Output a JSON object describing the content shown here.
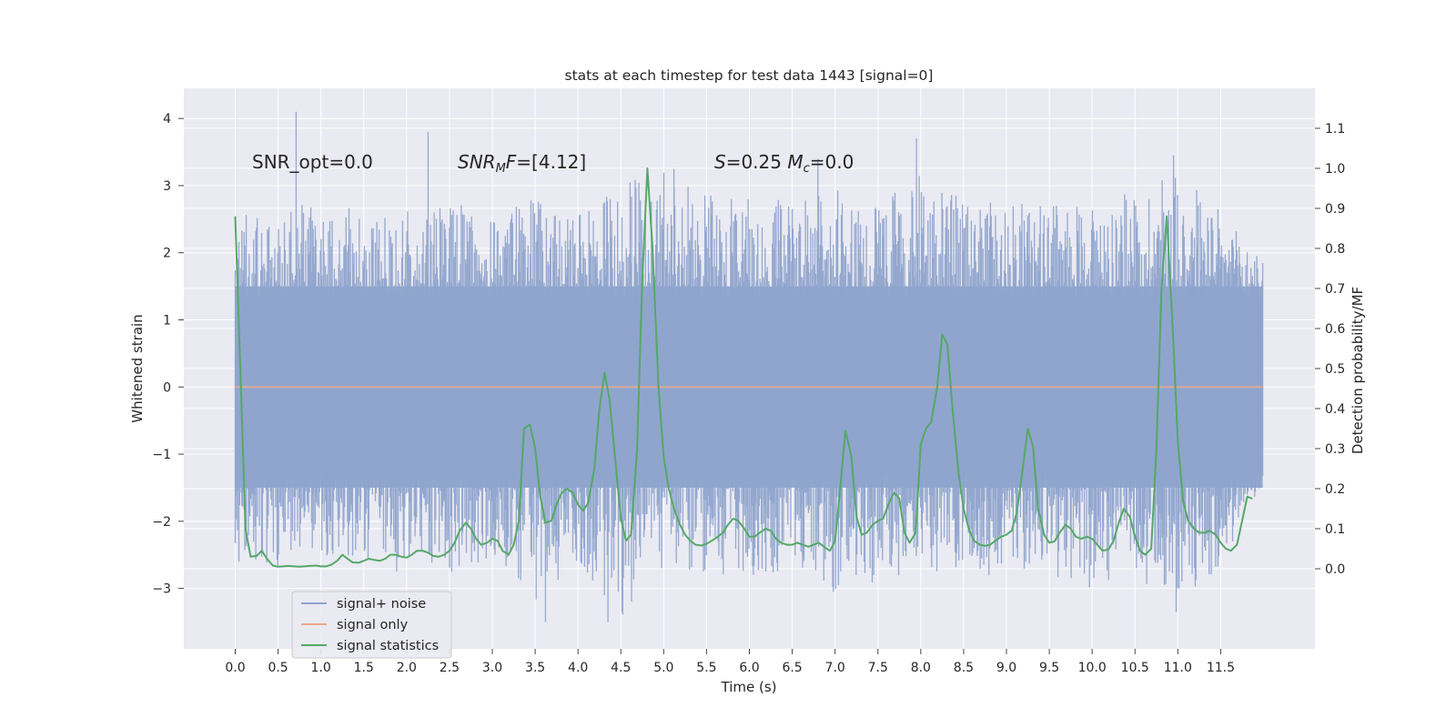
{
  "chart_data": {
    "type": "line",
    "title": "stats at each timestep for test data 1443 [signal=0]",
    "xlabel": "Time (s)",
    "ylabel_left": "Whitened strain",
    "ylabel_right": "Detection probability/MF",
    "xlim": [
      -0.6,
      12.6
    ],
    "ylim_left": [
      -3.9,
      4.45
    ],
    "ylim_right": [
      -0.2,
      1.2
    ],
    "x_ticks": [
      0.0,
      0.5,
      1.0,
      1.5,
      2.0,
      2.5,
      3.0,
      3.5,
      4.0,
      4.5,
      5.0,
      5.5,
      6.0,
      6.5,
      7.0,
      7.5,
      8.0,
      8.5,
      9.0,
      9.5,
      10.0,
      10.5,
      11.0,
      11.5
    ],
    "x_tick_labels": [
      "0.0",
      "0.5",
      "1.0",
      "1.5",
      "2.0",
      "2.5",
      "3.0",
      "3.5",
      "4.0",
      "4.5",
      "5.0",
      "5.5",
      "6.0",
      "6.5",
      "7.0",
      "7.5",
      "8.0",
      "8.5",
      "9.0",
      "9.5",
      "10.0",
      "10.5",
      "11.0",
      "11.5"
    ],
    "y_left_ticks": [
      -3,
      -2,
      -1,
      0,
      1,
      2,
      3,
      4
    ],
    "y_left_tick_labels": [
      "−3",
      "−2",
      "−1",
      "0",
      "1",
      "2",
      "3",
      "4"
    ],
    "y_right_ticks": [
      0.0,
      0.1,
      0.2,
      0.3,
      0.4,
      0.5,
      0.6,
      0.7,
      0.8,
      0.9,
      1.0,
      1.1
    ],
    "y_right_tick_labels": [
      "0.0",
      "0.1",
      "0.2",
      "0.3",
      "0.4",
      "0.5",
      "0.6",
      "0.7",
      "0.8",
      "0.9",
      "1.0",
      "1.1"
    ],
    "grid": true,
    "legend_position": "lower-left",
    "annotations": [
      {
        "label": "SNR_opt=0.0",
        "x": 0.2,
        "y": 3.35
      },
      {
        "label": "SNR_MF=[4.12]",
        "x": 2.6,
        "y": 3.35
      },
      {
        "label": "S=0.25   M_c=0.0",
        "x": 5.6,
        "y": 3.35
      }
    ],
    "series": [
      {
        "name": "signal+ noise",
        "axis": "left",
        "color": "#8fa4cc",
        "description_range": [
          0.0,
          11.99
        ],
        "envelope": {
          "x": [
            0.0,
            0.5,
            1.0,
            1.5,
            2.0,
            2.5,
            3.0,
            3.5,
            4.0,
            4.5,
            5.0,
            5.5,
            6.0,
            6.5,
            7.0,
            7.5,
            8.0,
            8.5,
            9.0,
            9.5,
            10.0,
            10.5,
            11.0,
            11.5,
            11.99
          ],
          "upper": [
            2.6,
            2.7,
            2.8,
            2.6,
            2.7,
            2.8,
            2.6,
            2.8,
            2.6,
            3.1,
            3.2,
            2.9,
            2.8,
            2.8,
            3.0,
            2.7,
            3.2,
            2.8,
            2.8,
            2.7,
            2.8,
            2.9,
            3.4,
            2.6,
            1.9
          ],
          "lower": [
            -2.6,
            -2.7,
            -2.5,
            -2.6,
            -2.8,
            -2.9,
            -2.5,
            -3.2,
            -2.8,
            -3.5,
            -2.7,
            -2.8,
            -2.9,
            -2.7,
            -3.1,
            -2.9,
            -2.8,
            -2.7,
            -2.9,
            -2.8,
            -3.0,
            -2.8,
            -3.3,
            -2.7,
            -1.4
          ]
        },
        "spikes": [
          {
            "x": 0.71,
            "y": 4.1
          },
          {
            "x": 2.25,
            "y": 3.8
          },
          {
            "x": 7.95,
            "y": 3.7
          },
          {
            "x": 10.95,
            "y": 3.45
          },
          {
            "x": 4.35,
            "y": -3.5
          },
          {
            "x": 3.62,
            "y": -3.5
          },
          {
            "x": 10.98,
            "y": -3.35
          },
          {
            "x": 6.8,
            "y": 3.4
          },
          {
            "x": 5.12,
            "y": 3.25
          }
        ]
      },
      {
        "name": "signal only",
        "axis": "left",
        "color": "#dd8452",
        "x": [
          0.0,
          11.99
        ],
        "y": [
          0.0,
          0.0
        ]
      },
      {
        "name": "signal statistics",
        "axis": "right",
        "color": "#55a868",
        "x": [
          0.0,
          0.06,
          0.12,
          0.18,
          0.25,
          0.31,
          0.37,
          0.44,
          0.5,
          0.56,
          0.62,
          0.69,
          0.75,
          0.81,
          0.87,
          0.94,
          1.0,
          1.06,
          1.12,
          1.19,
          1.25,
          1.31,
          1.37,
          1.44,
          1.5,
          1.56,
          1.62,
          1.69,
          1.75,
          1.81,
          1.87,
          1.94,
          2.0,
          2.06,
          2.12,
          2.19,
          2.25,
          2.31,
          2.37,
          2.44,
          2.5,
          2.56,
          2.62,
          2.69,
          2.75,
          2.81,
          2.87,
          2.94,
          3.0,
          3.06,
          3.12,
          3.19,
          3.25,
          3.31,
          3.37,
          3.44,
          3.5,
          3.56,
          3.62,
          3.69,
          3.75,
          3.81,
          3.87,
          3.94,
          4.0,
          4.06,
          4.12,
          4.19,
          4.25,
          4.31,
          4.37,
          4.44,
          4.5,
          4.56,
          4.62,
          4.69,
          4.75,
          4.81,
          4.87,
          4.94,
          5.0,
          5.06,
          5.12,
          5.19,
          5.25,
          5.31,
          5.37,
          5.44,
          5.5,
          5.56,
          5.62,
          5.69,
          5.75,
          5.81,
          5.87,
          5.94,
          6.0,
          6.06,
          6.12,
          6.19,
          6.25,
          6.31,
          6.37,
          6.44,
          6.5,
          6.56,
          6.62,
          6.69,
          6.75,
          6.81,
          6.87,
          6.94,
          7.0,
          7.06,
          7.12,
          7.19,
          7.25,
          7.31,
          7.37,
          7.44,
          7.5,
          7.56,
          7.62,
          7.69,
          7.75,
          7.81,
          7.87,
          7.94,
          8.0,
          8.06,
          8.12,
          8.19,
          8.25,
          8.31,
          8.37,
          8.44,
          8.5,
          8.56,
          8.62,
          8.69,
          8.75,
          8.81,
          8.87,
          8.94,
          9.0,
          9.06,
          9.12,
          9.19,
          9.25,
          9.31,
          9.37,
          9.44,
          9.5,
          9.56,
          9.62,
          9.69,
          9.75,
          9.81,
          9.87,
          9.94,
          10.0,
          10.06,
          10.12,
          10.19,
          10.25,
          10.31,
          10.37,
          10.44,
          10.5,
          10.56,
          10.62,
          10.69,
          10.75,
          10.81,
          10.87,
          10.94,
          11.0,
          11.06,
          11.12,
          11.19,
          11.25,
          11.31,
          11.37,
          11.44,
          11.5,
          11.56,
          11.62,
          11.69,
          11.75,
          11.81,
          11.87
        ],
        "y": [
          0.88,
          0.5,
          0.1,
          0.03,
          0.032,
          0.045,
          0.025,
          0.008,
          0.005,
          0.006,
          0.007,
          0.006,
          0.005,
          0.006,
          0.007,
          0.008,
          0.006,
          0.006,
          0.01,
          0.02,
          0.035,
          0.025,
          0.016,
          0.015,
          0.02,
          0.025,
          0.022,
          0.02,
          0.025,
          0.035,
          0.035,
          0.03,
          0.028,
          0.035,
          0.045,
          0.045,
          0.04,
          0.032,
          0.03,
          0.035,
          0.045,
          0.065,
          0.095,
          0.115,
          0.1,
          0.075,
          0.06,
          0.065,
          0.075,
          0.07,
          0.045,
          0.035,
          0.06,
          0.12,
          0.35,
          0.36,
          0.3,
          0.18,
          0.115,
          0.12,
          0.16,
          0.19,
          0.2,
          0.19,
          0.16,
          0.145,
          0.165,
          0.25,
          0.4,
          0.49,
          0.42,
          0.26,
          0.125,
          0.07,
          0.085,
          0.3,
          0.72,
          1.0,
          0.8,
          0.45,
          0.28,
          0.2,
          0.15,
          0.11,
          0.085,
          0.07,
          0.06,
          0.058,
          0.062,
          0.07,
          0.078,
          0.09,
          0.11,
          0.125,
          0.12,
          0.1,
          0.08,
          0.08,
          0.09,
          0.1,
          0.095,
          0.075,
          0.065,
          0.06,
          0.06,
          0.065,
          0.06,
          0.055,
          0.06,
          0.065,
          0.055,
          0.045,
          0.07,
          0.2,
          0.345,
          0.28,
          0.13,
          0.085,
          0.09,
          0.11,
          0.12,
          0.125,
          0.16,
          0.19,
          0.175,
          0.09,
          0.065,
          0.09,
          0.31,
          0.35,
          0.365,
          0.45,
          0.585,
          0.56,
          0.4,
          0.24,
          0.15,
          0.1,
          0.07,
          0.06,
          0.057,
          0.06,
          0.07,
          0.08,
          0.085,
          0.095,
          0.14,
          0.25,
          0.35,
          0.305,
          0.15,
          0.085,
          0.065,
          0.068,
          0.09,
          0.11,
          0.1,
          0.08,
          0.075,
          0.08,
          0.075,
          0.06,
          0.045,
          0.048,
          0.07,
          0.115,
          0.15,
          0.13,
          0.08,
          0.045,
          0.035,
          0.05,
          0.3,
          0.7,
          0.88,
          0.6,
          0.32,
          0.17,
          0.12,
          0.1,
          0.09,
          0.09,
          0.095,
          0.085,
          0.065,
          0.05,
          0.045,
          0.06,
          0.12,
          0.18,
          0.175
        ]
      }
    ]
  },
  "legend": {
    "items": [
      {
        "label": "signal+ noise",
        "color": "#8fa4cc"
      },
      {
        "label": "signal only",
        "color": "#dd8452"
      },
      {
        "label": "signal statistics",
        "color": "#55a868"
      }
    ]
  },
  "colors": {
    "plot_background": "#eaeaf2",
    "grid": "#ffffff",
    "text": "#262626"
  }
}
